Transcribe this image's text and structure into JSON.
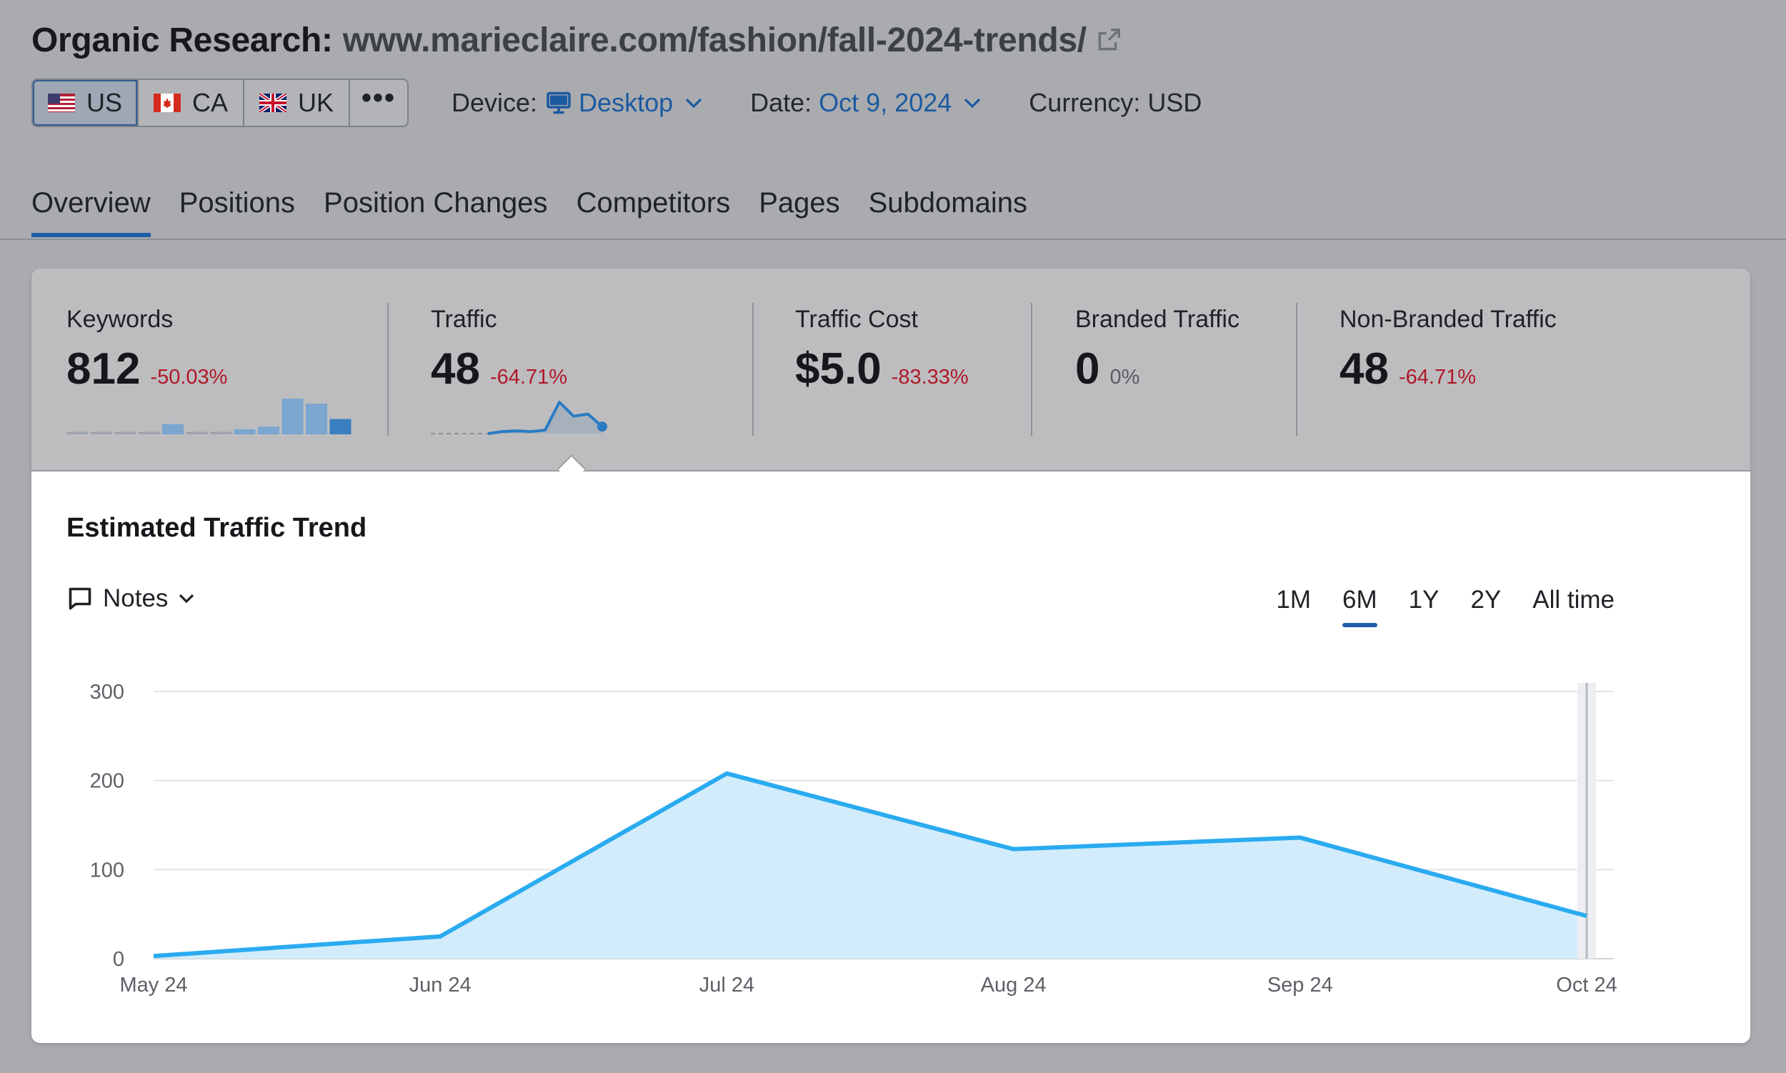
{
  "header": {
    "title_label": "Organic Research:",
    "title_url": "www.marieclaire.com/fashion/fall-2024-trends/",
    "databases": [
      {
        "code": "US",
        "active": true
      },
      {
        "code": "CA",
        "active": false
      },
      {
        "code": "UK",
        "active": false
      }
    ],
    "more_label": "•••",
    "device_label": "Device:",
    "device_value": "Desktop",
    "date_label": "Date:",
    "date_value": "Oct 9, 2024",
    "currency_label": "Currency: USD"
  },
  "tabs": [
    "Overview",
    "Positions",
    "Position Changes",
    "Competitors",
    "Pages",
    "Subdomains"
  ],
  "metrics": {
    "keywords": {
      "label": "Keywords",
      "value": "812",
      "change": "-50.03%"
    },
    "traffic": {
      "label": "Traffic",
      "value": "48",
      "change": "-64.71%"
    },
    "traffic_cost": {
      "label": "Traffic Cost",
      "value": "$5.0",
      "change": "-83.33%"
    },
    "branded": {
      "label": "Branded Traffic",
      "value": "0",
      "change": "0%"
    },
    "non_branded": {
      "label": "Non-Branded Traffic",
      "value": "48",
      "change": "-64.71%"
    },
    "keywords_spark": [
      1,
      1,
      1,
      1,
      4,
      1,
      1,
      2,
      3,
      14,
      12,
      6
    ],
    "traffic_spark": [
      0,
      0,
      0,
      0,
      0,
      3,
      4,
      3,
      5,
      45,
      25,
      28,
      10
    ]
  },
  "colors": {
    "accent": "#1d5ea6",
    "negative": "#b0182a",
    "series_line": "#2aabf0",
    "series_fill": "#d3ecfb"
  },
  "trend": {
    "title": "Estimated Traffic Trend",
    "notes_label": "Notes",
    "ranges": [
      "1M",
      "6M",
      "1Y",
      "2Y",
      "All time"
    ],
    "active_range": "6M"
  },
  "chart_data": {
    "type": "area",
    "title": "Estimated Traffic Trend",
    "categories": [
      "May 24",
      "Jun 24",
      "Jul 24",
      "Aug 24",
      "Sep 24",
      "Oct 24"
    ],
    "series": [
      {
        "name": "Traffic",
        "values": [
          3,
          25,
          208,
          123,
          136,
          48
        ]
      }
    ],
    "ylim": [
      0,
      300
    ],
    "yticks": [
      0,
      100,
      200,
      300
    ],
    "grid": true
  }
}
